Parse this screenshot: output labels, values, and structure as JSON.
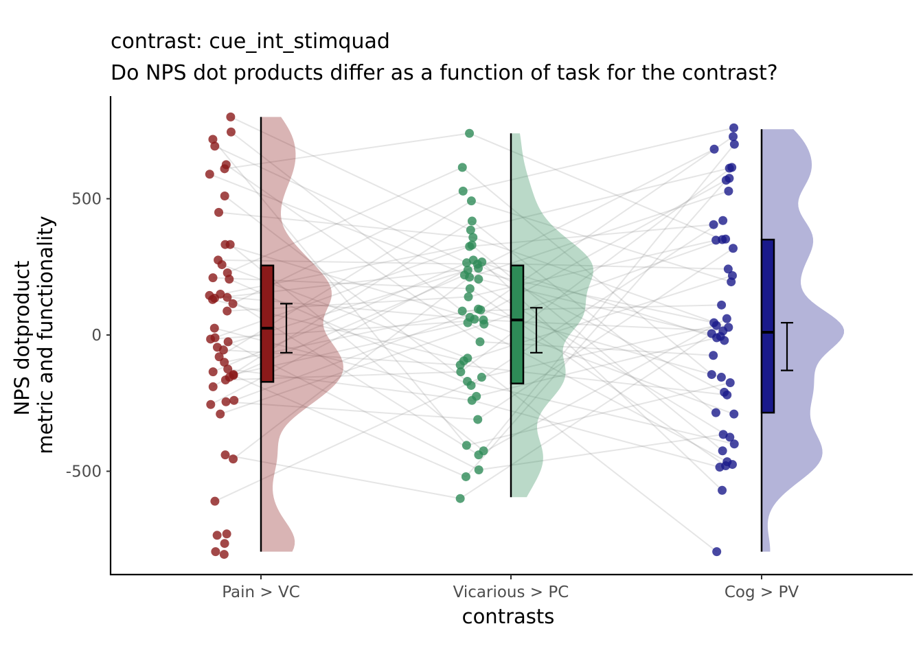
{
  "chart_data": {
    "type": "raincloud",
    "title": "contrast:  cue_int_stimquad",
    "subtitle": "Do NPS dot products differ as a function of task for the contrast?",
    "xlabel": "contrasts",
    "ylabel": [
      "NPS dotproduct",
      "metric and functionality"
    ],
    "categories": [
      "Pain > VC",
      "Vicarious > PC",
      "Cog > PV"
    ],
    "colors": [
      "#8B1A1A",
      "#2E8B57",
      "#1A1A8B"
    ],
    "ylim": [
      -880,
      880
    ],
    "yticks": [
      500,
      0,
      -500
    ],
    "ytick_labels": [
      "500",
      "0",
      "-500"
    ],
    "grid": false,
    "legend": "none",
    "series": [
      {
        "name": "Pain > VC",
        "box": {
          "min": -795,
          "q1": -172,
          "median": 25,
          "q3": 255,
          "max": 800
        },
        "mean": 25,
        "ci": [
          -65,
          115
        ],
        "points": [
          800,
          745,
          718,
          693,
          625,
          610,
          590,
          510,
          450,
          332,
          332,
          275,
          258,
          228,
          210,
          205,
          150,
          145,
          138,
          135,
          130,
          115,
          88,
          25,
          -10,
          -15,
          -25,
          -45,
          -55,
          -80,
          -100,
          -125,
          -135,
          -145,
          -148,
          -155,
          -165,
          -190,
          -240,
          -245,
          -255,
          -290,
          -440,
          -455,
          -610,
          -735,
          -730,
          -765,
          -795,
          -805
        ]
      },
      {
        "name": "Vicarious > PC",
        "box": {
          "min": -595,
          "q1": -178,
          "median": 55,
          "q3": 255,
          "max": 740
        },
        "mean": 20,
        "ci": [
          -65,
          100
        ],
        "points": [
          740,
          615,
          528,
          492,
          418,
          385,
          358,
          330,
          325,
          275,
          268,
          265,
          260,
          245,
          238,
          220,
          212,
          205,
          170,
          140,
          95,
          92,
          88,
          65,
          58,
          55,
          45,
          40,
          -25,
          -85,
          -95,
          -110,
          -135,
          -155,
          -170,
          -185,
          -225,
          -240,
          -310,
          -405,
          -425,
          -440,
          -495,
          -520,
          -600
        ]
      },
      {
        "name": "Cog > PV",
        "box": {
          "min": -795,
          "q1": -285,
          "median": 10,
          "q3": 350,
          "max": 755
        },
        "mean": -40,
        "ci": [
          -130,
          45
        ],
        "points": [
          760,
          728,
          700,
          682,
          615,
          612,
          575,
          568,
          528,
          420,
          405,
          352,
          350,
          348,
          318,
          242,
          218,
          195,
          110,
          60,
          45,
          35,
          28,
          15,
          5,
          -5,
          -10,
          -20,
          -75,
          -145,
          -155,
          -175,
          -210,
          -220,
          -285,
          -290,
          -365,
          -375,
          -400,
          -425,
          -465,
          -475,
          -480,
          -485,
          -570,
          -795
        ]
      }
    ]
  }
}
